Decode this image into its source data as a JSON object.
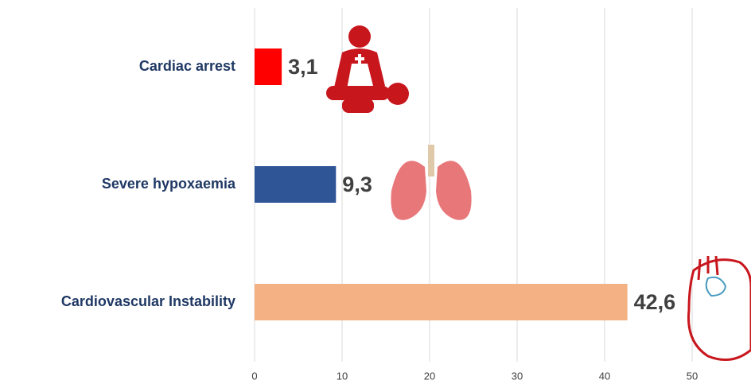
{
  "chart_data": {
    "type": "bar",
    "orientation": "horizontal",
    "categories": [
      "Cardiac arrest",
      "Severe hypoxaemia",
      "Cardiovascular Instability"
    ],
    "values": [
      3.1,
      9.3,
      42.6
    ],
    "value_labels": [
      "3,1",
      "9,3",
      "42,6"
    ],
    "colors": [
      "#ff0000",
      "#2f5597",
      "#f4b183"
    ],
    "xlim": [
      0,
      55
    ],
    "xticks": [
      0,
      10,
      20,
      30,
      40,
      50
    ],
    "grid": true
  }
}
